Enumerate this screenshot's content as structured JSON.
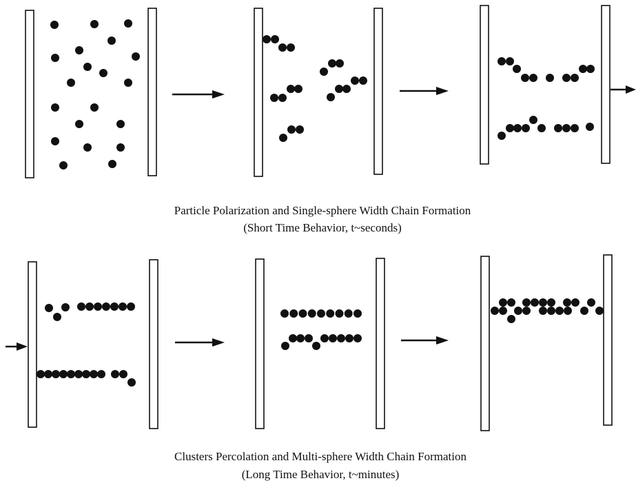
{
  "captions": [
    {
      "title": "Particle Polarization and Single-sphere Width Chain Formation",
      "subtitle": "(Short Time Behavior, t~seconds)"
    },
    {
      "title": "Clusters Percolation and Multi-sphere Width Chain Formation",
      "subtitle": "(Long Time Behavior, t~minutes)"
    }
  ]
}
